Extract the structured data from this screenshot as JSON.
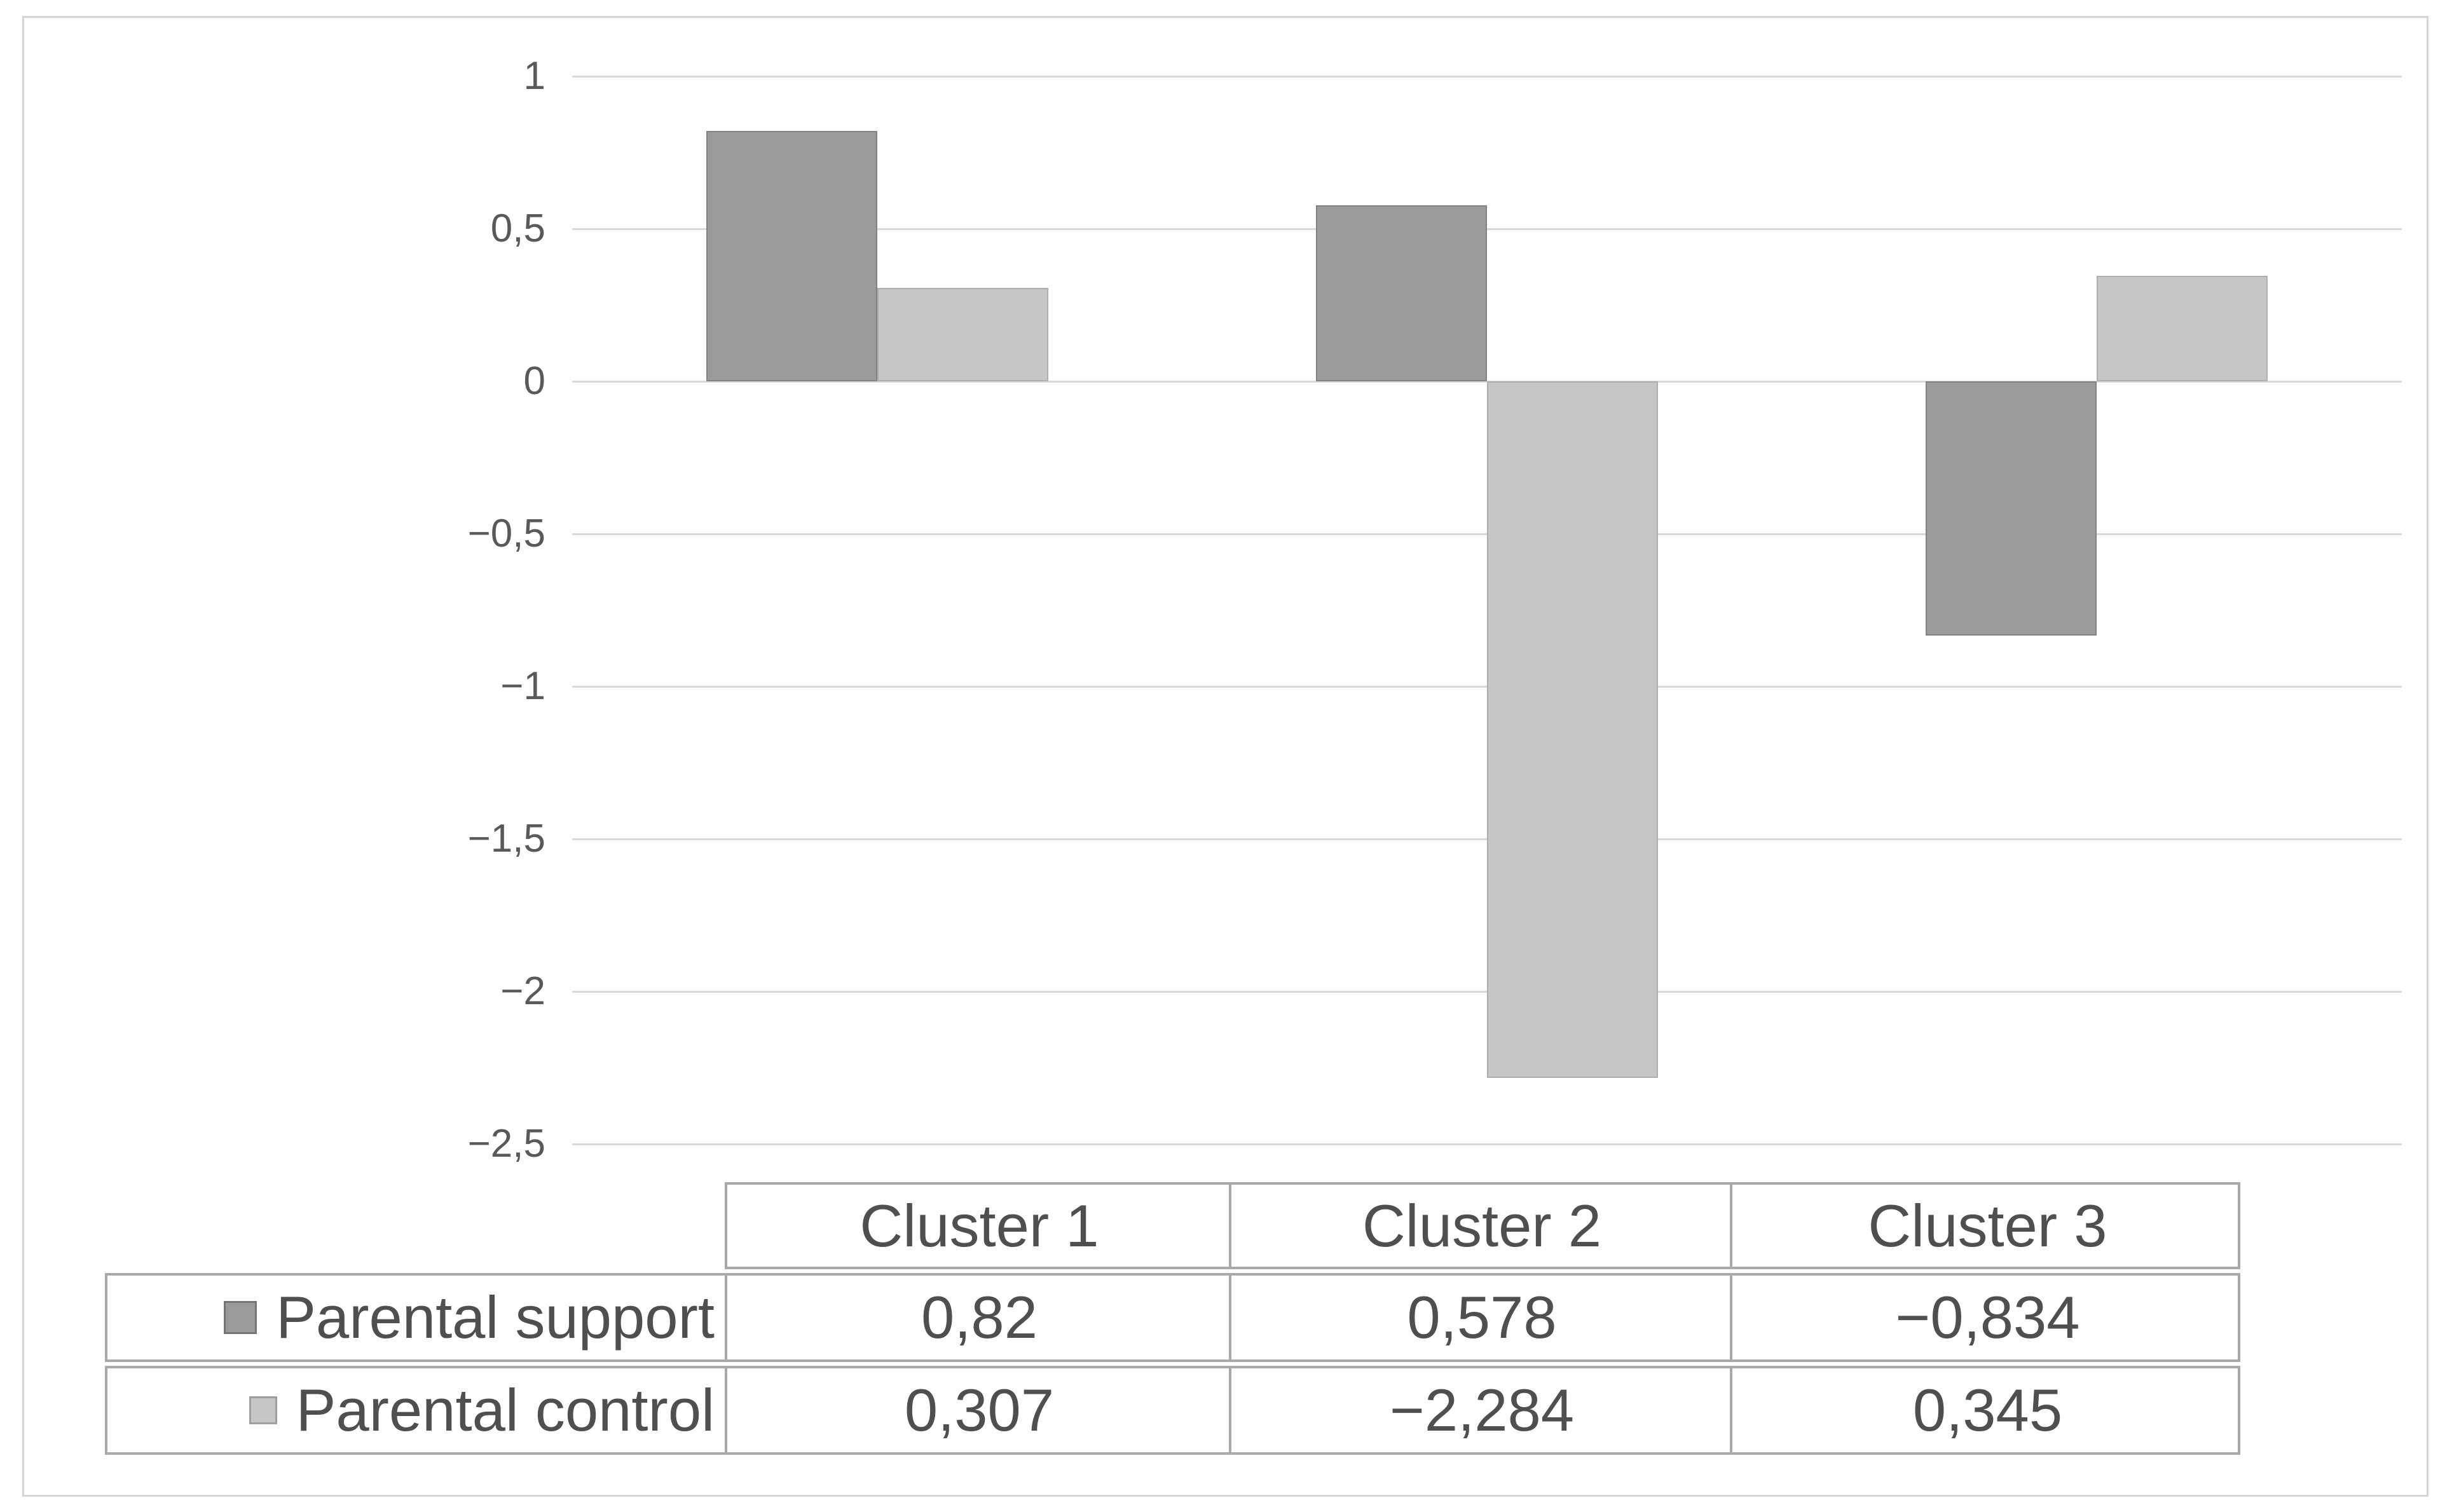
{
  "figure": {
    "background": "#ffffff",
    "frame_border_color": "#d5d5d5"
  },
  "chart_data": {
    "type": "bar",
    "title": "",
    "xlabel": "",
    "ylabel": "",
    "categories": [
      "Cluster 1",
      "Cluster 2",
      "Cluster 3"
    ],
    "series": [
      {
        "name": "Parental support",
        "values": [
          0.82,
          0.578,
          -0.834
        ],
        "color": "#9a9a9a",
        "border_color": "#828282"
      },
      {
        "name": "Parental control",
        "values": [
          0.307,
          -2.284,
          0.345
        ],
        "color": "#c6c6c6",
        "border_color": "#aeaeae"
      }
    ],
    "ylim": [
      -2.5,
      1
    ],
    "ytick_step": 0.5,
    "yticks": [
      {
        "value": 1,
        "label": "1"
      },
      {
        "value": 0.5,
        "label": "0,5"
      },
      {
        "value": 0,
        "label": "0"
      },
      {
        "value": -0.5,
        "label": "−0,5"
      },
      {
        "value": -1,
        "label": "−1"
      },
      {
        "value": -1.5,
        "label": "−1,5"
      },
      {
        "value": -2,
        "label": "−2"
      },
      {
        "value": -2.5,
        "label": "−2,5"
      }
    ],
    "grid": true,
    "gridline_color": "#d9d9d9",
    "tick_label_color": "#595959",
    "decimal_separator": ",",
    "legend_position": "bottom-table"
  },
  "data_table": {
    "column_headers": [
      "Cluster 1",
      "Cluster 2",
      "Cluster 3"
    ],
    "rows": [
      {
        "label": "Parental support",
        "marker_color": "#9a9a9a",
        "marker_border_color": "#757575",
        "values": [
          "0,82",
          "0,578",
          "−0,834"
        ]
      },
      {
        "label": "Parental control",
        "marker_color": "#c6c6c6",
        "marker_border_color": "#9e9e9e",
        "values": [
          "0,307",
          "−2,284",
          "0,345"
        ]
      }
    ],
    "border_color": "#a9a9a9",
    "text_color": "#4f4f4f"
  }
}
